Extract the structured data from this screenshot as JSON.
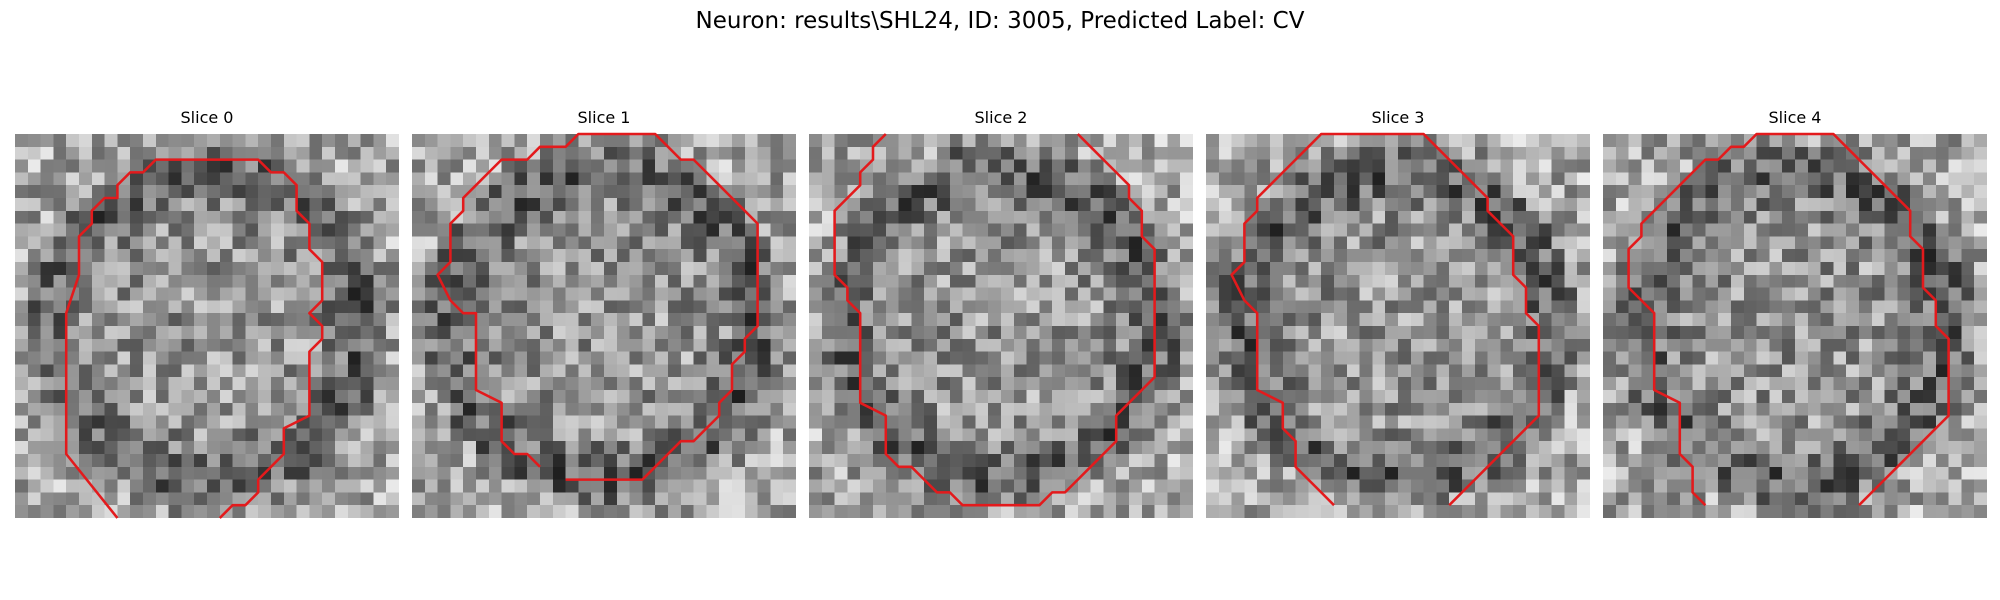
{
  "figure": {
    "title": "Neuron: results\\SHL24, ID: 3005, Predicted Label: CV"
  },
  "contour_color": "#e31a1c",
  "panels": [
    {
      "title": "Slice 0",
      "seed": 11,
      "contour": [
        [
          8,
          30
        ],
        [
          4,
          25
        ],
        [
          4,
          14
        ],
        [
          5,
          11
        ],
        [
          5,
          8
        ],
        [
          6,
          7
        ],
        [
          6,
          6
        ],
        [
          7,
          5
        ],
        [
          8,
          5
        ],
        [
          8,
          4
        ],
        [
          9,
          3
        ],
        [
          10,
          3
        ],
        [
          11,
          2
        ],
        [
          19,
          2
        ],
        [
          20,
          3
        ],
        [
          21,
          3
        ],
        [
          22,
          4
        ],
        [
          22,
          6
        ],
        [
          23,
          7
        ],
        [
          23,
          9
        ],
        [
          24,
          10
        ],
        [
          24,
          13
        ],
        [
          23,
          14
        ],
        [
          24,
          15
        ],
        [
          24,
          16
        ],
        [
          23,
          17
        ],
        [
          23,
          22
        ],
        [
          21,
          23
        ],
        [
          21,
          25
        ],
        [
          20,
          26
        ],
        [
          19,
          27
        ],
        [
          19,
          28
        ],
        [
          18,
          29
        ],
        [
          17,
          29
        ],
        [
          16,
          30
        ]
      ]
    },
    {
      "title": "Slice 1",
      "seed": 23,
      "contour": [
        [
          10,
          26
        ],
        [
          9,
          25
        ],
        [
          8,
          25
        ],
        [
          7,
          24
        ],
        [
          7,
          21
        ],
        [
          5,
          20
        ],
        [
          5,
          14
        ],
        [
          4,
          14
        ],
        [
          3,
          13
        ],
        [
          2,
          11
        ],
        [
          3,
          10
        ],
        [
          3,
          7
        ],
        [
          4,
          6
        ],
        [
          4,
          5
        ],
        [
          5,
          4
        ],
        [
          6,
          3
        ],
        [
          7,
          2
        ],
        [
          9,
          2
        ],
        [
          10,
          1
        ],
        [
          12,
          1
        ],
        [
          13,
          0
        ],
        [
          19,
          0
        ],
        [
          20,
          1
        ],
        [
          21,
          2
        ],
        [
          22,
          2
        ],
        [
          23,
          3
        ],
        [
          24,
          4
        ],
        [
          25,
          5
        ],
        [
          26,
          6
        ],
        [
          27,
          7
        ],
        [
          27,
          11
        ],
        [
          27,
          15
        ],
        [
          26,
          16
        ],
        [
          26,
          17
        ],
        [
          25,
          18
        ],
        [
          25,
          20
        ],
        [
          24,
          21
        ],
        [
          24,
          22
        ],
        [
          23,
          23
        ],
        [
          22,
          24
        ],
        [
          21,
          24
        ],
        [
          20,
          25
        ],
        [
          19,
          26
        ],
        [
          18,
          27
        ],
        [
          12,
          27
        ]
      ]
    },
    {
      "title": "Slice 2",
      "seed": 37,
      "contour": [
        [
          6,
          0
        ],
        [
          5,
          1
        ],
        [
          5,
          2
        ],
        [
          4,
          3
        ],
        [
          4,
          4
        ],
        [
          3,
          5
        ],
        [
          2,
          6
        ],
        [
          2,
          11
        ],
        [
          3,
          12
        ],
        [
          3,
          13
        ],
        [
          4,
          14
        ],
        [
          4,
          21
        ],
        [
          6,
          22
        ],
        [
          6,
          25
        ],
        [
          7,
          26
        ],
        [
          8,
          26
        ],
        [
          9,
          27
        ],
        [
          10,
          28
        ],
        [
          11,
          28
        ],
        [
          12,
          29
        ],
        [
          18,
          29
        ],
        [
          19,
          28
        ],
        [
          20,
          28
        ],
        [
          21,
          27
        ],
        [
          22,
          26
        ],
        [
          23,
          25
        ],
        [
          24,
          24
        ],
        [
          24,
          22
        ],
        [
          25,
          21
        ],
        [
          26,
          20
        ],
        [
          27,
          19
        ],
        [
          27,
          9
        ],
        [
          26,
          8
        ],
        [
          26,
          6
        ],
        [
          25,
          5
        ],
        [
          25,
          4
        ],
        [
          24,
          3
        ],
        [
          23,
          2
        ],
        [
          22,
          1
        ],
        [
          21,
          0
        ]
      ]
    },
    {
      "title": "Slice 3",
      "seed": 51,
      "contour": [
        [
          10,
          29
        ],
        [
          9,
          28
        ],
        [
          8,
          27
        ],
        [
          7,
          26
        ],
        [
          7,
          24
        ],
        [
          6,
          23
        ],
        [
          6,
          21
        ],
        [
          4,
          20
        ],
        [
          4,
          14
        ],
        [
          3,
          13
        ],
        [
          2,
          11
        ],
        [
          3,
          10
        ],
        [
          3,
          7
        ],
        [
          4,
          6
        ],
        [
          4,
          5
        ],
        [
          5,
          4
        ],
        [
          6,
          3
        ],
        [
          7,
          2
        ],
        [
          8,
          1
        ],
        [
          9,
          0
        ],
        [
          17,
          0
        ],
        [
          18,
          1
        ],
        [
          19,
          2
        ],
        [
          20,
          3
        ],
        [
          21,
          4
        ],
        [
          22,
          5
        ],
        [
          22,
          6
        ],
        [
          23,
          7
        ],
        [
          24,
          8
        ],
        [
          24,
          11
        ],
        [
          25,
          12
        ],
        [
          25,
          14
        ],
        [
          26,
          15
        ],
        [
          26,
          22
        ],
        [
          25,
          23
        ],
        [
          24,
          24
        ],
        [
          23,
          25
        ],
        [
          22,
          26
        ],
        [
          21,
          27
        ],
        [
          20,
          28
        ],
        [
          19,
          29
        ]
      ]
    },
    {
      "title": "Slice 4",
      "seed": 67,
      "contour": [
        [
          8,
          29
        ],
        [
          7,
          28
        ],
        [
          7,
          26
        ],
        [
          6,
          25
        ],
        [
          6,
          21
        ],
        [
          4,
          20
        ],
        [
          4,
          14
        ],
        [
          3,
          13
        ],
        [
          2,
          12
        ],
        [
          2,
          9
        ],
        [
          3,
          8
        ],
        [
          3,
          7
        ],
        [
          4,
          6
        ],
        [
          5,
          5
        ],
        [
          6,
          4
        ],
        [
          7,
          3
        ],
        [
          8,
          2
        ],
        [
          9,
          2
        ],
        [
          10,
          1
        ],
        [
          11,
          1
        ],
        [
          12,
          0
        ],
        [
          18,
          0
        ],
        [
          19,
          1
        ],
        [
          20,
          2
        ],
        [
          21,
          3
        ],
        [
          22,
          4
        ],
        [
          23,
          5
        ],
        [
          24,
          6
        ],
        [
          24,
          8
        ],
        [
          25,
          9
        ],
        [
          25,
          12
        ],
        [
          26,
          13
        ],
        [
          26,
          15
        ],
        [
          27,
          16
        ],
        [
          27,
          22
        ],
        [
          26,
          23
        ],
        [
          25,
          24
        ],
        [
          24,
          25
        ],
        [
          23,
          26
        ],
        [
          22,
          27
        ],
        [
          21,
          28
        ],
        [
          20,
          29
        ]
      ]
    }
  ]
}
